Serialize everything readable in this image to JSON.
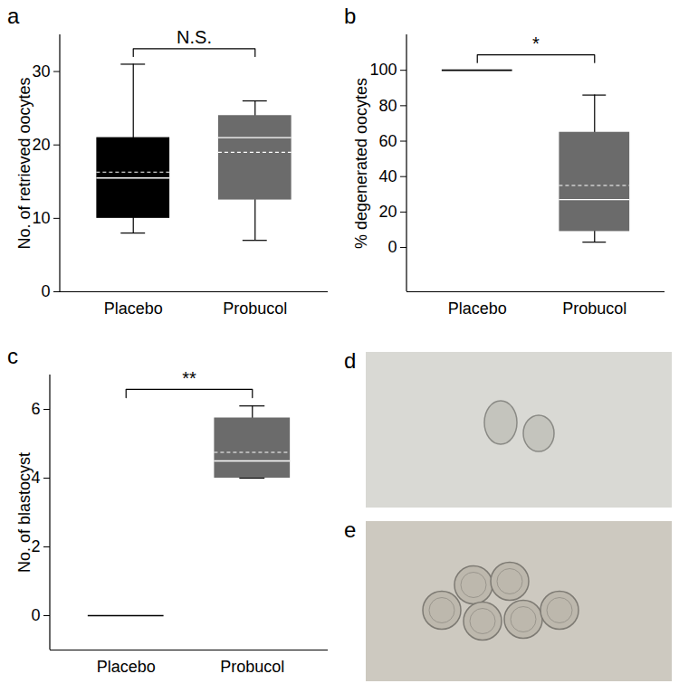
{
  "chart_data": [
    {
      "type": "box",
      "panel": "a",
      "y_label": "No. of retrieved oocytes",
      "categories": [
        "Placebo",
        "Probucol"
      ],
      "colors": [
        "#000000",
        "#6b6b6b"
      ],
      "stats": [
        {
          "min": 8,
          "q1": 10,
          "median": 15.5,
          "mean": 16.3,
          "q3": 21,
          "max": 31
        },
        {
          "min": 7,
          "q1": 12.5,
          "median": 21,
          "mean": 19,
          "q3": 24,
          "max": 26
        }
      ],
      "annotation": "N.S.",
      "ylim": [
        0,
        35
      ],
      "yticks": [
        0,
        10,
        20,
        30
      ]
    },
    {
      "type": "box",
      "panel": "b",
      "y_label": "% degenerated oocytes",
      "categories": [
        "Placebo",
        "Probucol"
      ],
      "colors": [
        "#000000",
        "#6b6b6b"
      ],
      "stats": [
        {
          "min": 100,
          "q1": 100,
          "median": 100,
          "mean": 100,
          "q3": 100,
          "max": 100
        },
        {
          "min": 3,
          "q1": 9,
          "median": 27,
          "mean": 35,
          "q3": 65,
          "max": 86
        }
      ],
      "annotation": "*",
      "ylim": [
        -25,
        120
      ],
      "yticks": [
        0,
        20,
        40,
        60,
        80,
        100
      ]
    },
    {
      "type": "box",
      "panel": "c",
      "y_label": "No. of blastocyst",
      "categories": [
        "Placebo",
        "Probucol"
      ],
      "colors": [
        "#000000",
        "#6b6b6b"
      ],
      "stats": [
        {
          "min": 0,
          "q1": 0,
          "median": 0,
          "mean": 0,
          "q3": 0,
          "max": 0
        },
        {
          "min": 4,
          "q1": 4,
          "median": 4.5,
          "mean": 4.75,
          "q3": 5.75,
          "max": 6.1
        }
      ],
      "annotation": "**",
      "ylim": [
        -1,
        7
      ],
      "yticks": [
        0,
        2,
        4,
        6
      ]
    }
  ],
  "images": [
    {
      "panel": "d"
    },
    {
      "panel": "e"
    }
  ]
}
